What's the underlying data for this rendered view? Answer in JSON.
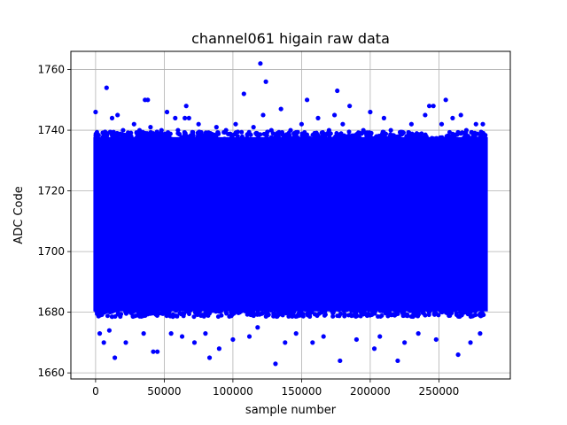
{
  "chart_data": {
    "type": "scatter",
    "title": "channel061 higain raw data",
    "xlabel": "sample number",
    "ylabel": "ADC Code",
    "xlim": [
      -18000,
      302000
    ],
    "ylim": [
      1658,
      1766
    ],
    "xticks": [
      0,
      50000,
      100000,
      150000,
      200000,
      250000
    ],
    "xtick_labels": [
      "0",
      "50000",
      "100000",
      "150000",
      "200000",
      "250000"
    ],
    "yticks": [
      1660,
      1680,
      1700,
      1720,
      1740,
      1760
    ],
    "ytick_labels": [
      "1660",
      "1680",
      "1700",
      "1720",
      "1740",
      "1760"
    ],
    "grid": true,
    "series": [
      {
        "color": "#0000ff",
        "marker": "o",
        "x_range": [
          0,
          284000
        ],
        "dense_band": [
          1681,
          1737
        ],
        "points": [
          [
            0,
            1746
          ],
          [
            3000,
            1673
          ],
          [
            6000,
            1670
          ],
          [
            8000,
            1754
          ],
          [
            10000,
            1674
          ],
          [
            12000,
            1744
          ],
          [
            14000,
            1665
          ],
          [
            16000,
            1745
          ],
          [
            20000,
            1740
          ],
          [
            22000,
            1670
          ],
          [
            28000,
            1742
          ],
          [
            32000,
            1740
          ],
          [
            35000,
            1673
          ],
          [
            36000,
            1750
          ],
          [
            38000,
            1750
          ],
          [
            40000,
            1741
          ],
          [
            42000,
            1667
          ],
          [
            45000,
            1667
          ],
          [
            48000,
            1740
          ],
          [
            52000,
            1746
          ],
          [
            55000,
            1673
          ],
          [
            58000,
            1744
          ],
          [
            60000,
            1740
          ],
          [
            63000,
            1672
          ],
          [
            65000,
            1744
          ],
          [
            66000,
            1748
          ],
          [
            68000,
            1744
          ],
          [
            72000,
            1670
          ],
          [
            75000,
            1742
          ],
          [
            80000,
            1673
          ],
          [
            83000,
            1665
          ],
          [
            88000,
            1741
          ],
          [
            90000,
            1668
          ],
          [
            95000,
            1740
          ],
          [
            100000,
            1671
          ],
          [
            102000,
            1742
          ],
          [
            108000,
            1752
          ],
          [
            112000,
            1672
          ],
          [
            115000,
            1741
          ],
          [
            118000,
            1675
          ],
          [
            120000,
            1762
          ],
          [
            122000,
            1745
          ],
          [
            124000,
            1756
          ],
          [
            128000,
            1740
          ],
          [
            131000,
            1663
          ],
          [
            135000,
            1747
          ],
          [
            138000,
            1670
          ],
          [
            142000,
            1740
          ],
          [
            146000,
            1673
          ],
          [
            150000,
            1742
          ],
          [
            154000,
            1750
          ],
          [
            158000,
            1670
          ],
          [
            162000,
            1744
          ],
          [
            166000,
            1672
          ],
          [
            170000,
            1740
          ],
          [
            174000,
            1745
          ],
          [
            176000,
            1753
          ],
          [
            178000,
            1664
          ],
          [
            180000,
            1742
          ],
          [
            185000,
            1748
          ],
          [
            190000,
            1671
          ],
          [
            195000,
            1740
          ],
          [
            200000,
            1746
          ],
          [
            203000,
            1668
          ],
          [
            207000,
            1672
          ],
          [
            210000,
            1744
          ],
          [
            215000,
            1740
          ],
          [
            220000,
            1664
          ],
          [
            225000,
            1670
          ],
          [
            230000,
            1742
          ],
          [
            235000,
            1673
          ],
          [
            240000,
            1745
          ],
          [
            243000,
            1748
          ],
          [
            246000,
            1748
          ],
          [
            248000,
            1671
          ],
          [
            252000,
            1742
          ],
          [
            255000,
            1750
          ],
          [
            260000,
            1744
          ],
          [
            264000,
            1666
          ],
          [
            266000,
            1745
          ],
          [
            270000,
            1740
          ],
          [
            273000,
            1670
          ],
          [
            277000,
            1742
          ],
          [
            280000,
            1673
          ],
          [
            282000,
            1742
          ]
        ]
      }
    ]
  }
}
